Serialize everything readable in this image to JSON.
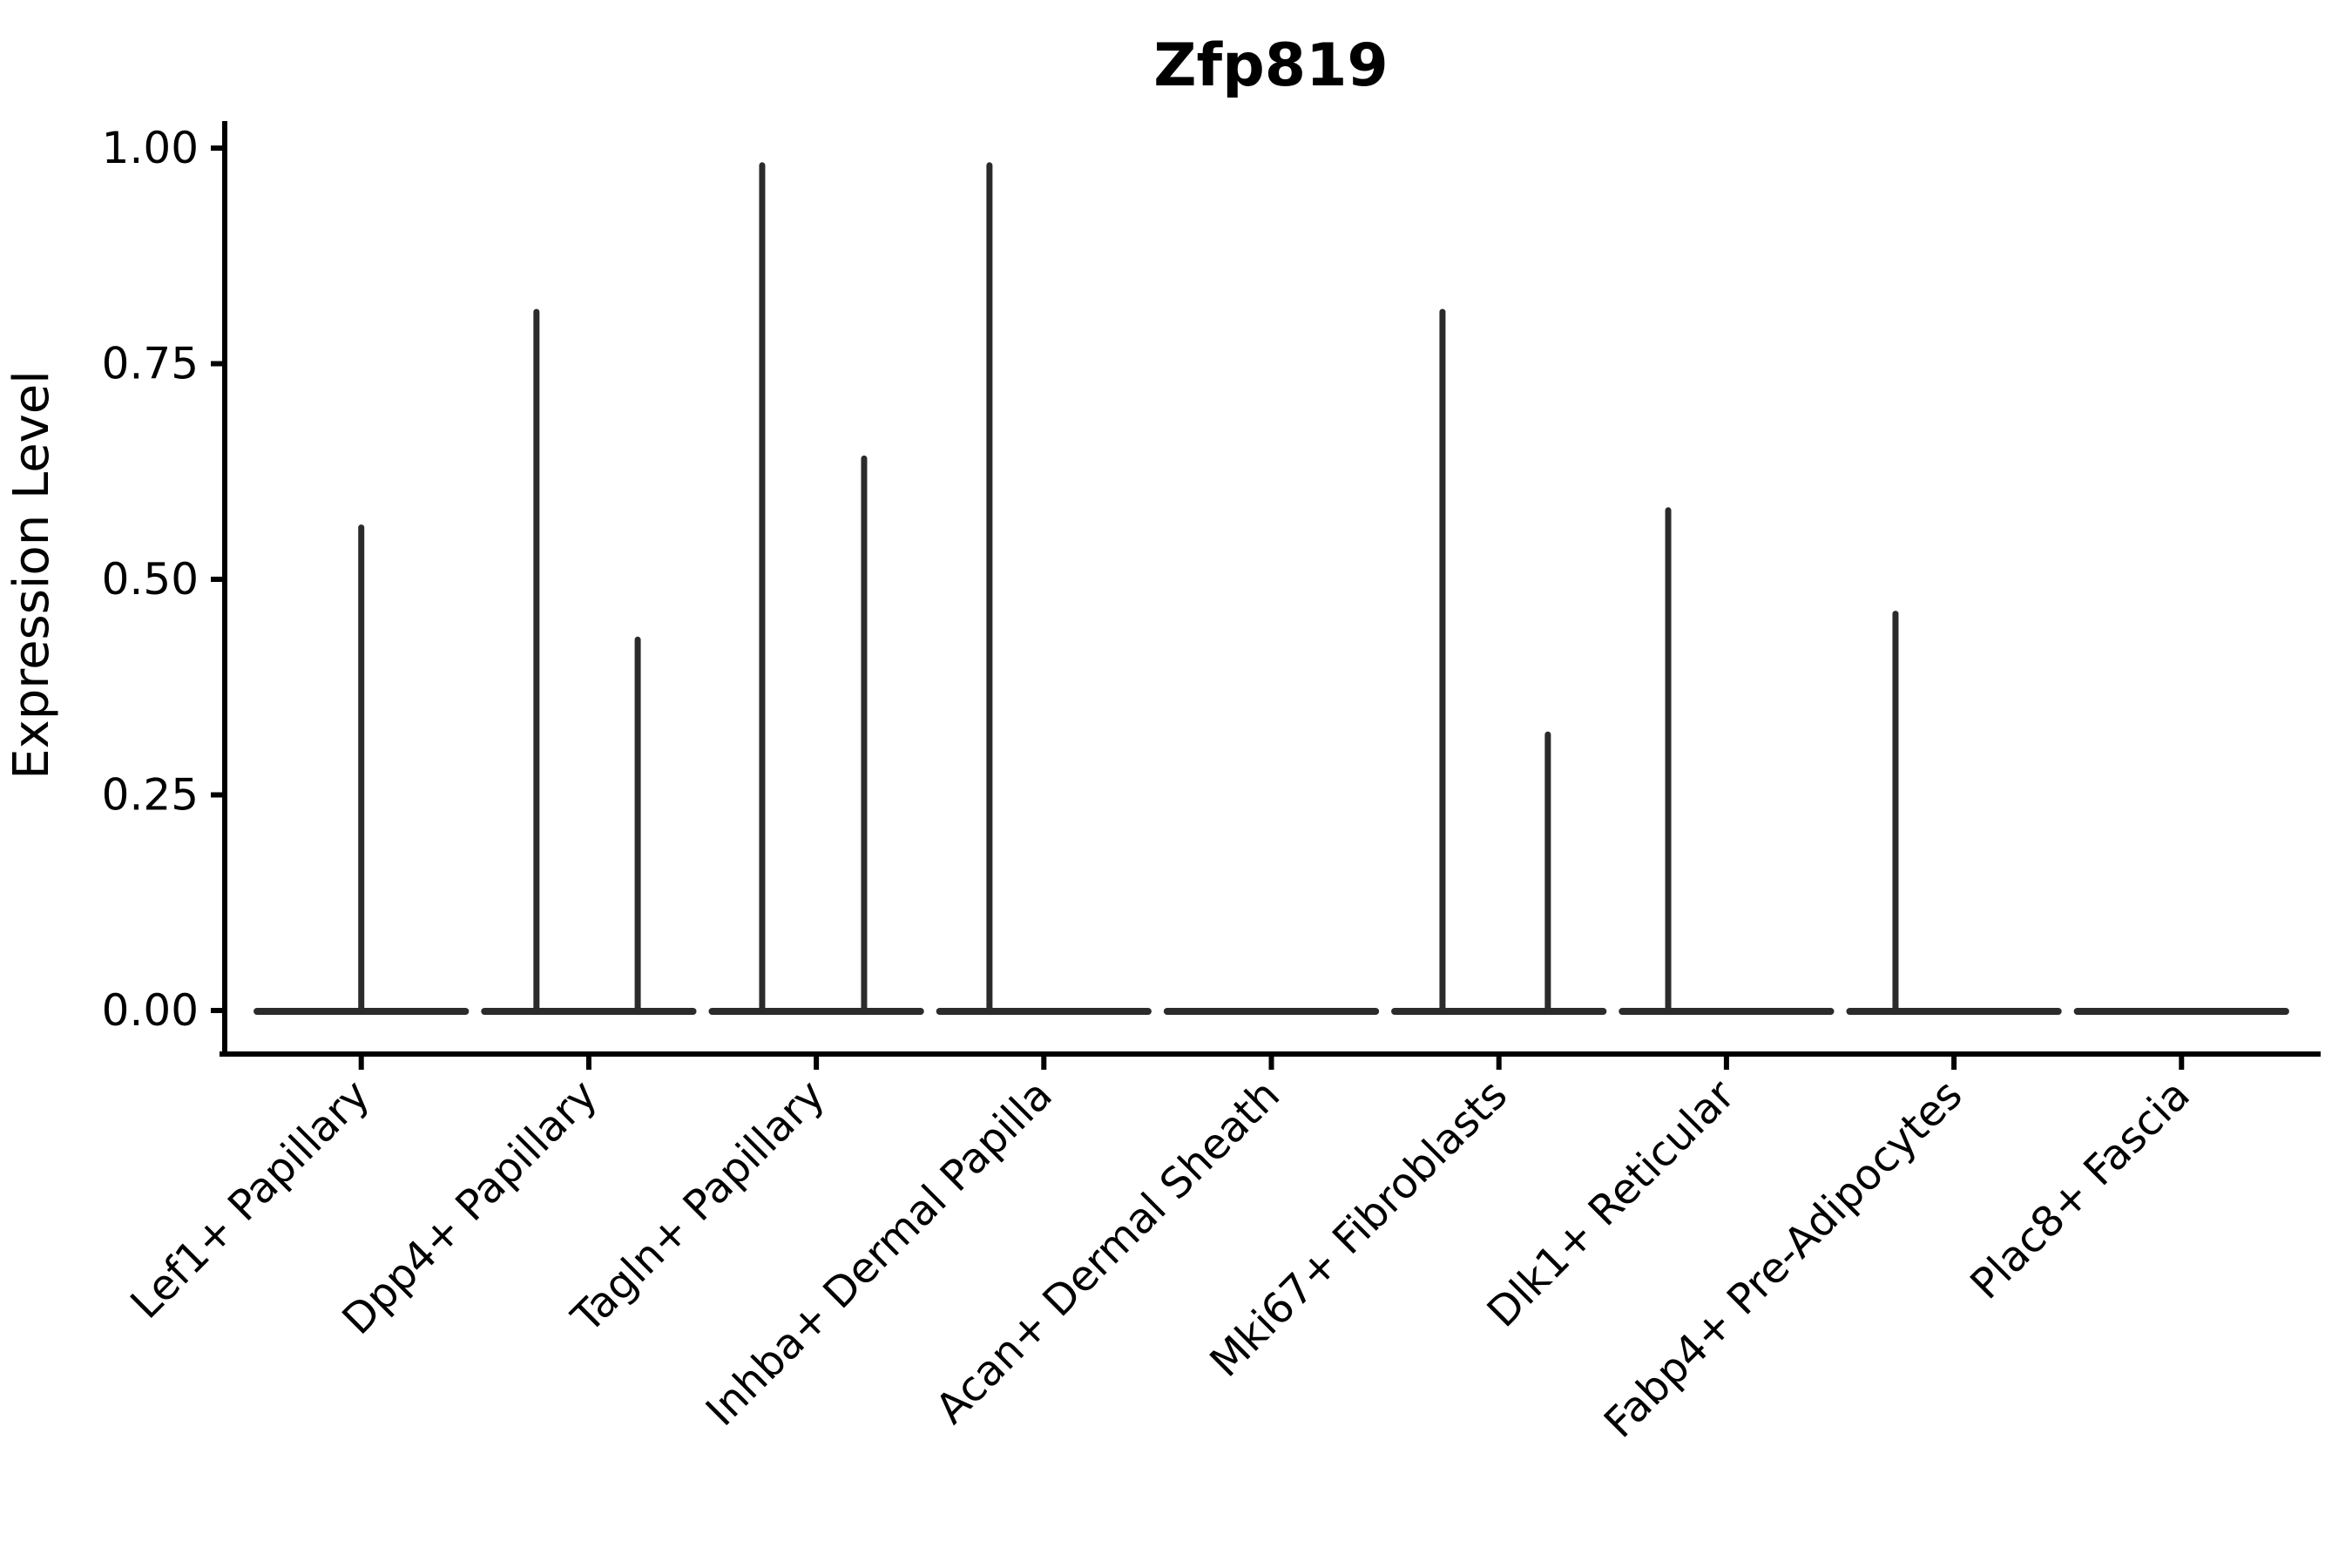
{
  "figure": {
    "title": "Zfp819",
    "y_axis": {
      "label": "Expression Level",
      "tick_labels": [
        "0.00",
        "0.25",
        "0.50",
        "0.75",
        "1.00"
      ]
    },
    "x_axis": {
      "label": "",
      "tick_labels": [
        "Lef1+ Papillary",
        "Dpp4+ Papillary",
        "Tagln+ Papillary",
        "Inhba+ Dermal Papilla",
        "Acan+ Dermal Sheath",
        "Mki67+ Fibroblasts",
        "Dlk1+ Reticular",
        "Fabp4+ Pre-Adipocytes",
        "Plac8+ Fascia"
      ]
    }
  },
  "chart_data": {
    "type": "violin",
    "title": "Zfp819",
    "xlabel": "",
    "ylabel": "Expression Level",
    "ylim": [
      0,
      1.0
    ],
    "yticks": [
      0,
      0.25,
      0.5,
      0.75,
      1.0
    ],
    "ytick_labels": [
      "0.00",
      "0.25",
      "0.50",
      "0.75",
      "1.00"
    ],
    "grid": false,
    "legend": "none",
    "x_label_rotation_deg": 45,
    "categories": [
      "Lef1+ Papillary",
      "Dpp4+ Papillary",
      "Tagln+ Papillary",
      "Inhba+ Dermal Papilla",
      "Acan+ Dermal Sheath",
      "Mki67+ Fibroblasts",
      "Dlk1+ Reticular",
      "Fabp4+ Pre-Adipocytes",
      "Plac8+ Fascia"
    ],
    "series": [
      {
        "name": "Lef1+ Papillary",
        "baseline_value": 0,
        "spikes": [
          {
            "x_offset": 0.0,
            "value": 0.56
          }
        ]
      },
      {
        "name": "Dpp4+ Papillary",
        "baseline_value": 0,
        "spikes": [
          {
            "x_offset": -0.23,
            "value": 0.81
          },
          {
            "x_offset": 0.215,
            "value": 0.43
          }
        ]
      },
      {
        "name": "Tagln+ Papillary",
        "baseline_value": 0,
        "spikes": [
          {
            "x_offset": -0.238,
            "value": 0.98
          },
          {
            "x_offset": 0.21,
            "value": 0.64
          }
        ]
      },
      {
        "name": "Inhba+ Dermal Papilla",
        "baseline_value": 0,
        "spikes": [
          {
            "x_offset": -0.239,
            "value": 0.98
          }
        ]
      },
      {
        "name": "Acan+ Dermal Sheath",
        "baseline_value": 0,
        "spikes": []
      },
      {
        "name": "Mki67+ Fibroblasts",
        "baseline_value": 0,
        "spikes": [
          {
            "x_offset": -0.248,
            "value": 0.81
          },
          {
            "x_offset": 0.215,
            "value": 0.32
          }
        ]
      },
      {
        "name": "Dlk1+ Reticular",
        "baseline_value": 0,
        "spikes": [
          {
            "x_offset": -0.256,
            "value": 0.58
          }
        ]
      },
      {
        "name": "Fabp4+ Pre-Adipocytes",
        "baseline_value": 0,
        "spikes": [
          {
            "x_offset": -0.257,
            "value": 0.46
          }
        ]
      },
      {
        "name": "Plac8+ Fascia",
        "baseline_value": 0,
        "spikes": []
      }
    ],
    "colors": {
      "violin_line": "#2b2b2b",
      "axis": "#000000",
      "text": "#000000",
      "background": "#ffffff"
    }
  }
}
